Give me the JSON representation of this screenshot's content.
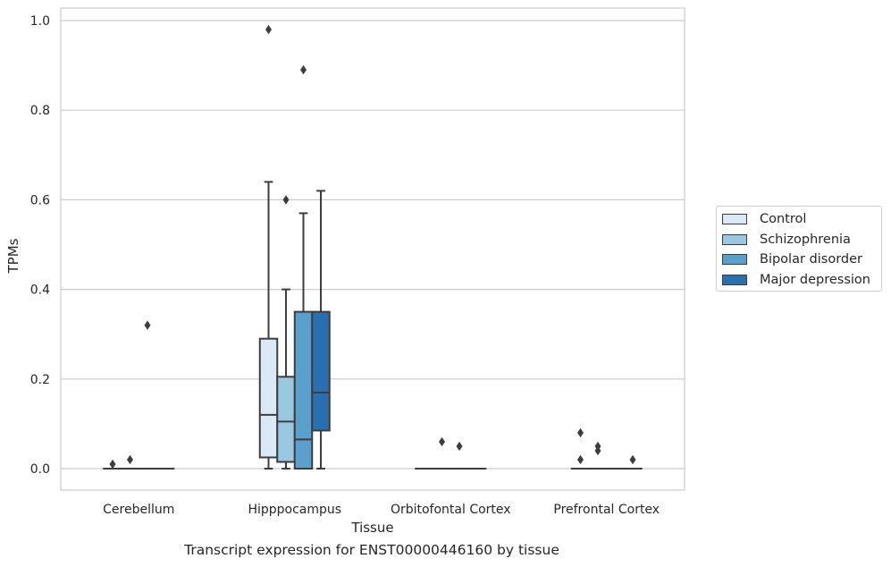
{
  "caption": "Transcript expression for ENST00000446160 by tissue",
  "legend": {
    "items": [
      {
        "label": "Control",
        "color": "#dbe9f6"
      },
      {
        "label": "Schizophrenia",
        "color": "#9ac8e0"
      },
      {
        "label": "Bipolar disorder",
        "color": "#5aa0cd"
      },
      {
        "label": "Major depression",
        "color": "#2a70b0"
      }
    ],
    "placement": "outside right"
  },
  "chart_data": {
    "type": "box",
    "title": "",
    "xlabel": "Tissue",
    "ylabel": "TPMs",
    "categories": [
      "Cerebellum",
      "Hipppocampus",
      "Orbitofontal Cortex",
      "Prefrontal Cortex"
    ],
    "ylim": [
      -0.045,
      1.03
    ],
    "yticks": [
      0.0,
      0.2,
      0.4,
      0.6,
      0.8,
      1.0
    ],
    "ytick_labels": [
      "0.0",
      "0.2",
      "0.4",
      "0.6",
      "0.8",
      "1.0"
    ],
    "grid": "horizontal",
    "series": [
      {
        "name": "Control",
        "color": "#dbe9f6",
        "boxes": [
          {
            "whislo": 0,
            "q1": 0,
            "med": 0,
            "q3": 0,
            "whishi": 0,
            "fliers": [
              0.01
            ]
          },
          {
            "whislo": 0,
            "q1": 0.025,
            "med": 0.12,
            "q3": 0.29,
            "whishi": 0.64,
            "fliers": [
              0.98
            ]
          },
          {
            "whislo": 0,
            "q1": 0,
            "med": 0,
            "q3": 0,
            "whishi": 0,
            "fliers": []
          },
          {
            "whislo": 0,
            "q1": 0,
            "med": 0,
            "q3": 0,
            "whishi": 0,
            "fliers": [
              0.08,
              0.02
            ]
          }
        ]
      },
      {
        "name": "Schizophrenia",
        "color": "#9ac8e0",
        "boxes": [
          {
            "whislo": 0,
            "q1": 0,
            "med": 0,
            "q3": 0,
            "whishi": 0,
            "fliers": [
              0.02
            ]
          },
          {
            "whislo": 0,
            "q1": 0.015,
            "med": 0.105,
            "q3": 0.205,
            "whishi": 0.4,
            "fliers": [
              0.6
            ]
          },
          {
            "whislo": 0,
            "q1": 0,
            "med": 0,
            "q3": 0,
            "whishi": 0,
            "fliers": [
              0.06
            ]
          },
          {
            "whislo": 0,
            "q1": 0,
            "med": 0,
            "q3": 0,
            "whishi": 0,
            "fliers": [
              0.05,
              0.04
            ]
          }
        ]
      },
      {
        "name": "Bipolar disorder",
        "color": "#5aa0cd",
        "boxes": [
          {
            "whislo": 0,
            "q1": 0,
            "med": 0,
            "q3": 0,
            "whishi": 0,
            "fliers": [
              0.32
            ]
          },
          {
            "whislo": 0,
            "q1": 0,
            "med": 0.065,
            "q3": 0.35,
            "whishi": 0.57,
            "fliers": [
              0.89
            ]
          },
          {
            "whislo": 0,
            "q1": 0,
            "med": 0,
            "q3": 0,
            "whishi": 0,
            "fliers": [
              0.05
            ]
          },
          {
            "whislo": 0,
            "q1": 0,
            "med": 0,
            "q3": 0,
            "whishi": 0,
            "fliers": []
          }
        ]
      },
      {
        "name": "Major depression",
        "color": "#2a70b0",
        "boxes": [
          {
            "whislo": 0,
            "q1": 0,
            "med": 0,
            "q3": 0,
            "whishi": 0,
            "fliers": []
          },
          {
            "whislo": 0,
            "q1": 0.085,
            "med": 0.17,
            "q3": 0.35,
            "whishi": 0.62,
            "fliers": []
          },
          {
            "whislo": 0,
            "q1": 0,
            "med": 0,
            "q3": 0,
            "whishi": 0,
            "fliers": []
          },
          {
            "whislo": 0,
            "q1": 0,
            "med": 0,
            "q3": 0,
            "whishi": 0,
            "fliers": [
              0.02
            ]
          }
        ]
      }
    ]
  }
}
